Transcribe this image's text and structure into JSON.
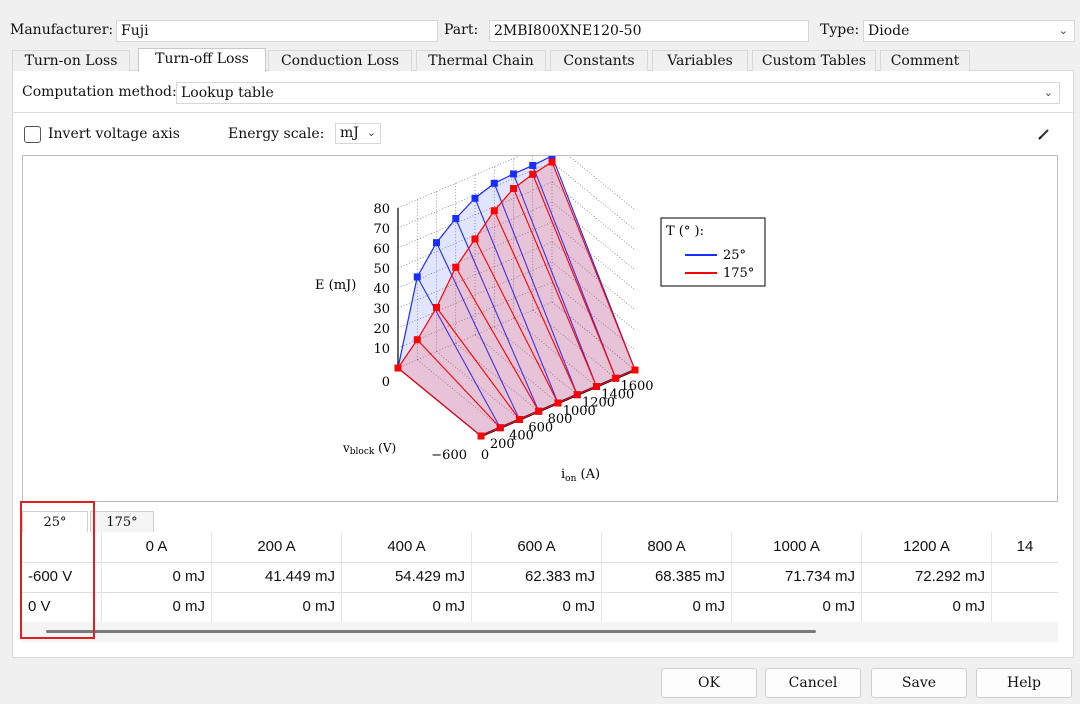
{
  "header": {
    "manufacturer_label": "Manufacturer:",
    "manufacturer_value": "Fuji",
    "part_label": "Part:",
    "part_value": "2MBI800XNE120-50",
    "type_label": "Type:",
    "type_value": "Diode"
  },
  "tabs": [
    {
      "label": "Turn-on Loss"
    },
    {
      "label": "Turn-off Loss"
    },
    {
      "label": "Conduction Loss"
    },
    {
      "label": "Thermal Chain"
    },
    {
      "label": "Constants"
    },
    {
      "label": "Variables"
    },
    {
      "label": "Custom Tables"
    },
    {
      "label": "Comment"
    }
  ],
  "computation": {
    "label": "Computation method:",
    "value": "Lookup table"
  },
  "options": {
    "invert_label": "Invert voltage axis",
    "invert_checked": false,
    "energy_label": "Energy scale:",
    "energy_value": "mJ"
  },
  "plot": {
    "z_label": "E (mJ)",
    "x_label": "v",
    "x_label_sub": "block",
    "x_label_unit": " (V)",
    "y_label": "i",
    "y_label_sub": "on",
    "y_label_unit": " (A)",
    "legend_title": "T (° ):",
    "legend_items": [
      "25°",
      "175°"
    ],
    "z_ticks": [
      "80",
      "70",
      "60",
      "50",
      "40",
      "30",
      "20",
      "10",
      "0"
    ],
    "v_ticks": [
      "−600",
      "0"
    ],
    "i_ticks": [
      "200",
      "400",
      "600",
      "800",
      "1000",
      "1200",
      "1400",
      "1600"
    ],
    "colors": {
      "low": "#1a2dff",
      "high": "#ff0000"
    }
  },
  "chart_data": {
    "type": "surface3d",
    "xlabel": "v_block (V)",
    "ylabel": "i_on (A)",
    "zlabel": "E (mJ)",
    "zlim": [
      0,
      80
    ],
    "v": [
      -600,
      0
    ],
    "i": [
      0,
      200,
      400,
      600,
      800,
      1000,
      1200,
      1400,
      1600
    ],
    "series": [
      {
        "name": "25°",
        "color": "#1a2dff",
        "values_at_minus600": [
          0,
          41.449,
          54.429,
          62.383,
          68.385,
          71.734,
          72.292,
          72.4,
          73
        ],
        "values_at_0": [
          0,
          0,
          0,
          0,
          0,
          0,
          0,
          0,
          0
        ]
      },
      {
        "name": "175°",
        "color": "#ff0000",
        "values_at_minus600": [
          0,
          10,
          22,
          38,
          48,
          58,
          65,
          68,
          70
        ],
        "values_at_0": [
          0,
          0,
          0,
          0,
          0,
          0,
          0,
          0,
          0
        ]
      }
    ]
  },
  "subtabs": [
    "25°",
    "175°"
  ],
  "table": {
    "columns": [
      "",
      "0 A",
      "200 A",
      "400 A",
      "600 A",
      "800 A",
      "1000 A",
      "1200 A",
      "14"
    ],
    "rows": [
      {
        "label": "-600 V",
        "cells": [
          "0 mJ",
          "41.449 mJ",
          "54.429 mJ",
          "62.383 mJ",
          "68.385 mJ",
          "71.734 mJ",
          "72.292 mJ",
          ""
        ]
      },
      {
        "label": "0 V",
        "cells": [
          "0 mJ",
          "0 mJ",
          "0 mJ",
          "0 mJ",
          "0 mJ",
          "0 mJ",
          "0 mJ",
          ""
        ]
      }
    ]
  },
  "buttons": {
    "ok": "OK",
    "cancel": "Cancel",
    "save": "Save",
    "help": "Help"
  }
}
